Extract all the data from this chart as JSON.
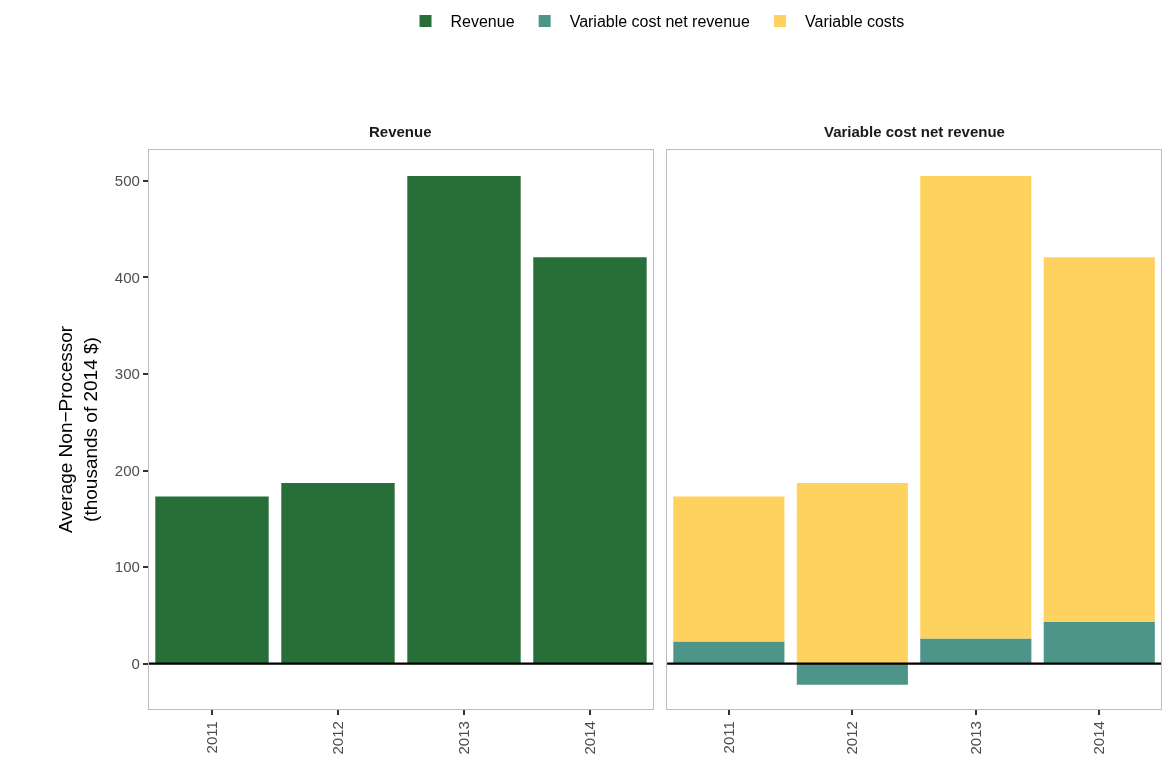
{
  "chart_data": [
    {
      "type": "bar",
      "title": "Revenue",
      "ylabel": "Average Non−Processor\n(thousands of 2014 $)",
      "categories": [
        "2011",
        "2012",
        "2013",
        "2014"
      ],
      "series": [
        {
          "name": "Revenue",
          "color": "#276e38",
          "values": [
            173,
            187,
            505,
            421
          ]
        }
      ],
      "ylim": [
        -47,
        532
      ],
      "yticks": [
        0,
        100,
        200,
        300,
        400,
        500
      ],
      "grid": false,
      "legend": "top",
      "ref_lines": [
        {
          "axis": "y",
          "value": 0,
          "color": "#000000"
        }
      ]
    },
    {
      "type": "bar",
      "title": "Variable cost net revenue",
      "categories": [
        "2011",
        "2012",
        "2013",
        "2014"
      ],
      "stacked": true,
      "series": [
        {
          "name": "Variable cost net revenue",
          "color": "#4c9588",
          "values": [
            23,
            -22,
            26,
            43
          ]
        },
        {
          "name": "Variable costs",
          "color": "#fed25f",
          "values": [
            150,
            187,
            479,
            378
          ]
        }
      ],
      "ylim": [
        -47,
        532
      ],
      "yticks": [
        0,
        100,
        200,
        300,
        400,
        500
      ],
      "tick_labels": "x",
      "grid": false,
      "legend": "top",
      "ref_lines": [
        {
          "axis": "y",
          "value": 0,
          "color": "#000000"
        }
      ]
    }
  ]
}
